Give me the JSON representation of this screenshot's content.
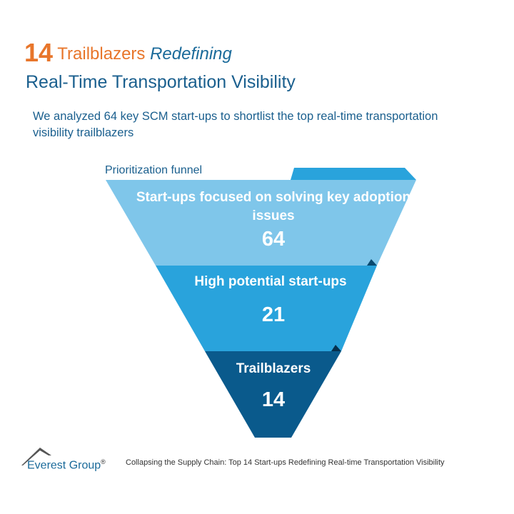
{
  "header": {
    "title_number": "14",
    "title_word": "Trailblazers",
    "title_italic": "Redefining",
    "title_line2": "Real-Time Transportation Visibility",
    "subtitle": "We analyzed 64 key SCM start-ups to shortlist the top real-time transportation visibility trailblazers"
  },
  "funnel": {
    "label": "Prioritization funnel",
    "stages": [
      {
        "label": "Start-ups focused on solving key adoption issues",
        "value": "64",
        "color": "#7fc6ea"
      },
      {
        "label": "High potential start-ups",
        "value": "21",
        "color": "#29a3dc"
      },
      {
        "label": "Trailblazers",
        "value": "14",
        "color": "#0a5a8c"
      }
    ]
  },
  "footer": {
    "logo": "Everest Group",
    "registered": "®",
    "caption": "Collapsing the Supply Chain: Top 14 Start-ups Redefining Real-time Transportation Visibility"
  }
}
